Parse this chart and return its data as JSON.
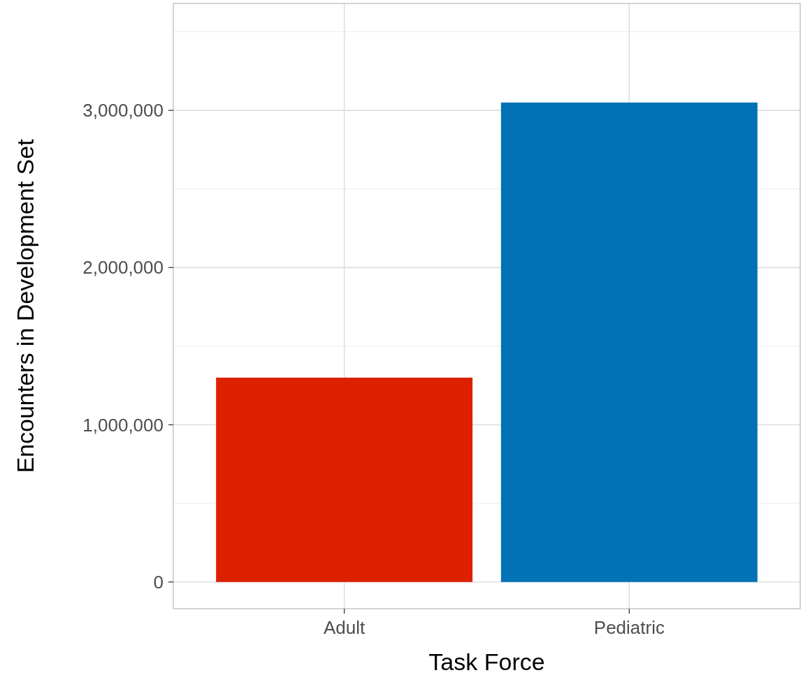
{
  "chart_data": {
    "type": "bar",
    "xlabel": "Task Force",
    "ylabel": "Encounters in Development Set",
    "categories": [
      "Adult",
      "Pediatric"
    ],
    "values": [
      1300000,
      3050000
    ],
    "colors": [
      "#dd2000",
      "#0072b5"
    ],
    "ylim": [
      -170000,
      3680000
    ],
    "yticks": [
      {
        "value": 0,
        "label": "0"
      },
      {
        "value": 1000000,
        "label": "1,000,000"
      },
      {
        "value": 2000000,
        "label": "2,000,000"
      },
      {
        "value": 3000000,
        "label": "3,000,000"
      }
    ],
    "grid": true
  }
}
